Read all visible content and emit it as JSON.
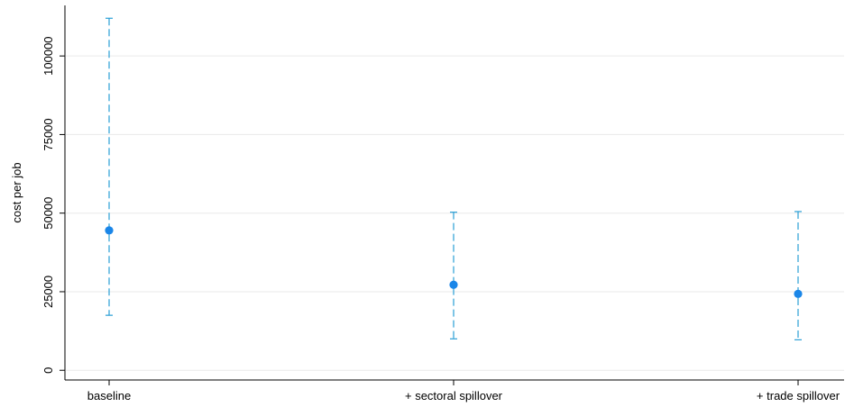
{
  "chart_data": {
    "type": "scatter",
    "title": "",
    "xlabel": "",
    "ylabel": "cost per job",
    "ylim": [
      -3000,
      115000
    ],
    "yticks": [
      0,
      25000,
      50000,
      75000,
      100000
    ],
    "ytick_labels": [
      "0",
      "25000",
      "50000",
      "75000",
      "100000"
    ],
    "grid": true,
    "categories": [
      "baseline",
      "+ sectoral spillover",
      "+ trade spillover"
    ],
    "estimates": [
      44500,
      27200,
      24300
    ],
    "ci_low": [
      17500,
      10000,
      9700
    ],
    "ci_high": [
      112000,
      50300,
      50500
    ],
    "colors": {
      "point": "#1a86e8",
      "error_bar": "#2a9fd6",
      "grid": "#eaeaea",
      "axis": "#000000"
    }
  }
}
